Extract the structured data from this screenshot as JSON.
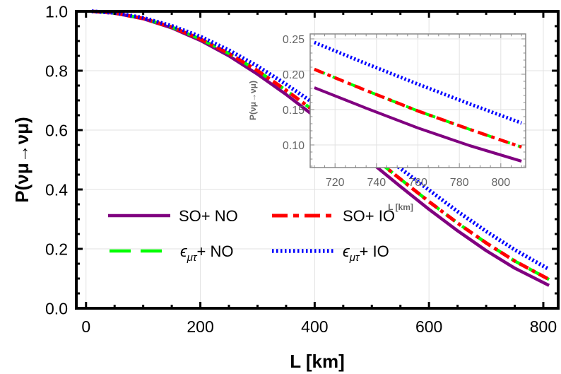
{
  "chart_data": [
    {
      "type": "line",
      "xlabel": "L [km]",
      "ylabel": "P(νμ→νμ)",
      "xlim": [
        -17,
        826
      ],
      "ylim": [
        0,
        1
      ],
      "xticks": [
        "0",
        "200",
        "400",
        "600",
        "800"
      ],
      "xtick_values": [
        0,
        200,
        400,
        600,
        800
      ],
      "yticks": [
        "0.0",
        "0.2",
        "0.4",
        "0.6",
        "0.8",
        "1.0"
      ],
      "ytick_values": [
        0,
        0.2,
        0.4,
        0.6,
        0.8,
        1.0
      ],
      "grid": true,
      "legend_placement": "bottom-center",
      "x": [
        10,
        50,
        100,
        150,
        200,
        250,
        300,
        350,
        400,
        450,
        500,
        550,
        600,
        650,
        700,
        750,
        810
      ],
      "series": [
        {
          "name": "SO+ NO",
          "color": "#800080",
          "style": "solid",
          "values": [
            1.0,
            0.994,
            0.975,
            0.944,
            0.902,
            0.85,
            0.788,
            0.72,
            0.646,
            0.568,
            0.489,
            0.41,
            0.333,
            0.261,
            0.194,
            0.135,
            0.077
          ]
        },
        {
          "name": "ϵμτ+ NO",
          "color": "#00ff00",
          "style": "dashed",
          "values": [
            1.0,
            0.994,
            0.976,
            0.947,
            0.907,
            0.858,
            0.8,
            0.734,
            0.663,
            0.589,
            0.512,
            0.435,
            0.359,
            0.287,
            0.22,
            0.159,
            0.097
          ]
        },
        {
          "name": "SO+ IO",
          "color": "#ff0000",
          "style": "dashdot",
          "values": [
            1.0,
            0.994,
            0.976,
            0.947,
            0.907,
            0.858,
            0.8,
            0.734,
            0.663,
            0.589,
            0.512,
            0.435,
            0.359,
            0.287,
            0.22,
            0.159,
            0.097
          ]
        },
        {
          "name": "ϵμτ+ IO",
          "color": "#0000ff",
          "style": "dotted",
          "values": [
            1.0,
            0.995,
            0.978,
            0.951,
            0.915,
            0.869,
            0.815,
            0.754,
            0.688,
            0.618,
            0.545,
            0.471,
            0.398,
            0.326,
            0.259,
            0.197,
            0.131
          ]
        }
      ],
      "legend": [
        {
          "label_main": "SO+ NO",
          "label_sub": "",
          "label_tail": ""
        },
        {
          "label_main": "SO+ IO",
          "label_sub": "",
          "label_tail": ""
        },
        {
          "label_main": "ϵ",
          "label_sub": "μτ",
          "label_tail": "+ NO"
        },
        {
          "label_main": "ϵ",
          "label_sub": "μτ",
          "label_tail": "+ IO"
        }
      ]
    },
    {
      "type": "line",
      "inset": true,
      "xlabel": "L [km]",
      "ylabel": "P(νμ→νμ)",
      "xlim": [
        708,
        812
      ],
      "ylim": [
        0.068,
        0.257
      ],
      "xticks": [
        "720",
        "740",
        "760",
        "780",
        "800"
      ],
      "xtick_values": [
        720,
        740,
        760,
        780,
        800
      ],
      "yticks": [
        "0.10",
        "0.15",
        "0.20",
        "0.25"
      ],
      "ytick_values": [
        0.1,
        0.15,
        0.2,
        0.25
      ],
      "grid": true,
      "x": [
        710,
        735,
        760,
        785,
        810
      ],
      "series": [
        {
          "name": "SO+ NO",
          "color": "#800080",
          "style": "solid",
          "values": [
            0.181,
            0.152,
            0.124,
            0.099,
            0.077
          ]
        },
        {
          "name": "ϵμτ+ NO",
          "color": "#00ff00",
          "style": "dashed",
          "values": [
            0.207,
            0.177,
            0.148,
            0.122,
            0.097
          ]
        },
        {
          "name": "SO+ IO",
          "color": "#ff0000",
          "style": "dashdot",
          "values": [
            0.207,
            0.177,
            0.148,
            0.122,
            0.097
          ]
        },
        {
          "name": "ϵμτ+ IO",
          "color": "#0000ff",
          "style": "dotted",
          "values": [
            0.245,
            0.215,
            0.186,
            0.158,
            0.131
          ]
        }
      ]
    }
  ]
}
